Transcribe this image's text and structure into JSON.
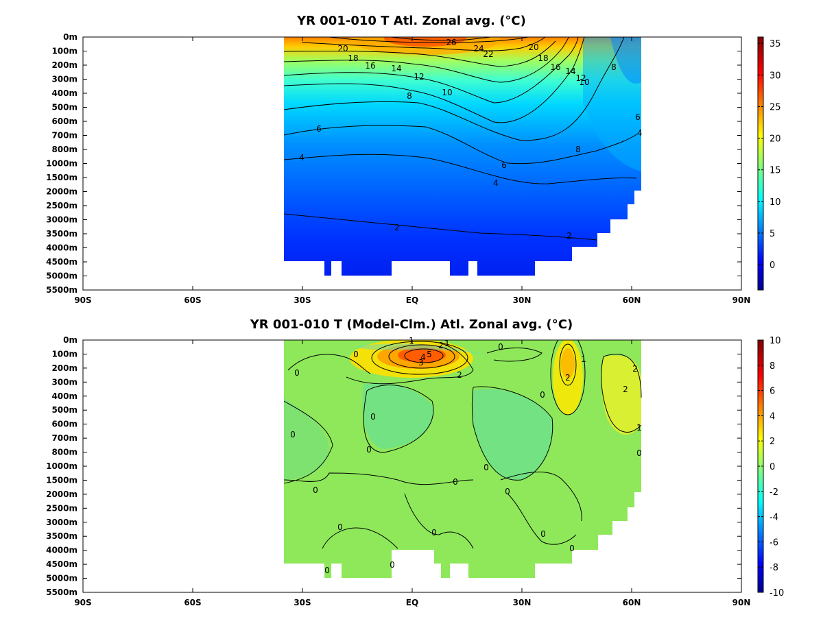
{
  "chart_data": [
    {
      "type": "heatmap",
      "title": "YR 001-010 T Atl. Zonal avg. (°C)",
      "x_ticks": [
        "90S",
        "60S",
        "30S",
        "EQ",
        "30N",
        "60N",
        "90N"
      ],
      "x_range": [
        -90,
        90
      ],
      "depth_ticks": [
        "0m",
        "100m",
        "200m",
        "300m",
        "400m",
        "500m",
        "600m",
        "700m",
        "800m",
        "1000m",
        "1500m",
        "2000m",
        "2500m",
        "3000m",
        "3500m",
        "4000m",
        "4500m",
        "5000m",
        "5500m"
      ],
      "colorbar": {
        "min": -4,
        "max": 36,
        "ticks": [
          "35",
          "30",
          "25",
          "20",
          "15",
          "10",
          "5",
          "0"
        ]
      },
      "contour_levels": [
        2,
        4,
        6,
        8,
        10,
        12,
        14,
        16,
        18,
        20,
        22,
        24,
        26
      ],
      "data_lon_extent": [
        -35,
        63
      ],
      "contour_labels": [
        "20",
        "18",
        "16",
        "14",
        "12",
        "10",
        "8",
        "6",
        "4",
        "2",
        "26",
        "24",
        "22",
        "20",
        "18",
        "16",
        "14",
        "12",
        "10",
        "8",
        "6",
        "4",
        "6",
        "4",
        "2",
        "8"
      ]
    },
    {
      "type": "heatmap",
      "title": "YR 001-010 T (Model-Clm.) Atl. Zonal avg. (°C)",
      "x_ticks": [
        "90S",
        "60S",
        "30S",
        "EQ",
        "30N",
        "60N",
        "90N"
      ],
      "x_range": [
        -90,
        90
      ],
      "depth_ticks": [
        "0m",
        "100m",
        "200m",
        "300m",
        "400m",
        "500m",
        "600m",
        "700m",
        "800m",
        "1000m",
        "1500m",
        "2000m",
        "2500m",
        "3000m",
        "3500m",
        "4000m",
        "4500m",
        "5000m",
        "5500m"
      ],
      "colorbar": {
        "min": -10,
        "max": 10,
        "ticks": [
          "10",
          "8",
          "6",
          "4",
          "2",
          "0",
          "-2",
          "-4",
          "-6",
          "-8",
          "-10"
        ]
      },
      "contour_levels": [
        0,
        1,
        2,
        3,
        4,
        5
      ],
      "data_lon_extent": [
        -35,
        63
      ],
      "contour_labels": [
        "1",
        "2",
        "1",
        "0",
        "5",
        "3",
        "4",
        "2",
        "0",
        "0",
        "0",
        "0",
        "0",
        "0",
        "0",
        "0",
        "0",
        "0",
        "0",
        "0",
        "0",
        "2",
        "1",
        "2",
        "2",
        "1",
        "0",
        "0",
        "0",
        "0"
      ]
    }
  ]
}
